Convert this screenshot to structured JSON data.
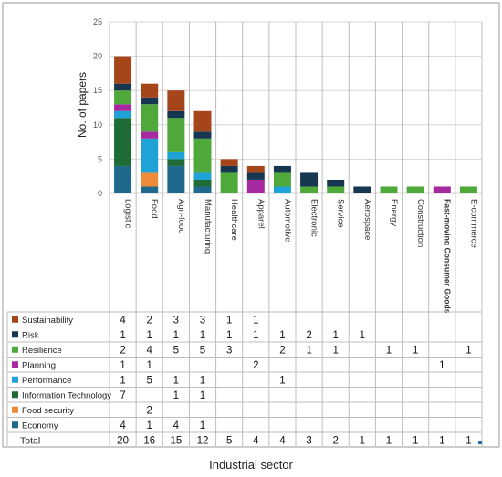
{
  "chart_data": {
    "type": "bar",
    "stacked": true,
    "ylabel": "No. of papers",
    "xlabel": "Industrial sector",
    "ylim": [
      0,
      25
    ],
    "yticks": [
      0,
      5,
      10,
      15,
      20,
      25
    ],
    "grid": true,
    "legend": "data table below chart",
    "categories": [
      "Logistic",
      "Food",
      "Agri-food",
      "Manufacturing",
      "Healthcare",
      "Apparel",
      "Automotive",
      "Electronic",
      "Service",
      "Aerospace",
      "Energy",
      "Construction",
      "Fast-moving Consumer Goods",
      "E-commerce"
    ],
    "series": [
      {
        "name": "Economy",
        "color": "#1f6a8c",
        "values": [
          4,
          1,
          4,
          1,
          null,
          null,
          null,
          null,
          null,
          null,
          null,
          null,
          null,
          null
        ]
      },
      {
        "name": "Food security",
        "color": "#ee8a3a",
        "values": [
          null,
          2,
          null,
          null,
          null,
          null,
          null,
          null,
          null,
          null,
          null,
          null,
          null,
          null
        ]
      },
      {
        "name": "Information Technology",
        "color": "#1e6b35",
        "values": [
          7,
          null,
          1,
          1,
          null,
          null,
          null,
          null,
          null,
          null,
          null,
          null,
          null,
          null
        ]
      },
      {
        "name": "Performance",
        "color": "#1fa3d6",
        "values": [
          1,
          5,
          1,
          1,
          null,
          null,
          1,
          null,
          null,
          null,
          null,
          null,
          null,
          null
        ]
      },
      {
        "name": "Planning",
        "color": "#a52a9f",
        "values": [
          1,
          1,
          null,
          null,
          null,
          2,
          null,
          null,
          null,
          null,
          null,
          null,
          1,
          null
        ]
      },
      {
        "name": "Resilience",
        "color": "#4fa83a",
        "values": [
          2,
          4,
          5,
          5,
          3,
          null,
          2,
          1,
          1,
          null,
          1,
          1,
          null,
          1
        ]
      },
      {
        "name": "Risk",
        "color": "#17364f",
        "values": [
          1,
          1,
          1,
          1,
          1,
          1,
          1,
          2,
          1,
          1,
          null,
          null,
          null,
          null
        ]
      },
      {
        "name": "Sustainability",
        "color": "#a5461a",
        "values": [
          4,
          2,
          3,
          3,
          1,
          1,
          null,
          null,
          null,
          null,
          null,
          null,
          null,
          null
        ]
      }
    ],
    "totals_label": "Total",
    "totals": [
      20,
      16,
      15,
      12,
      5,
      4,
      4,
      3,
      2,
      1,
      1,
      1,
      1,
      1
    ]
  }
}
